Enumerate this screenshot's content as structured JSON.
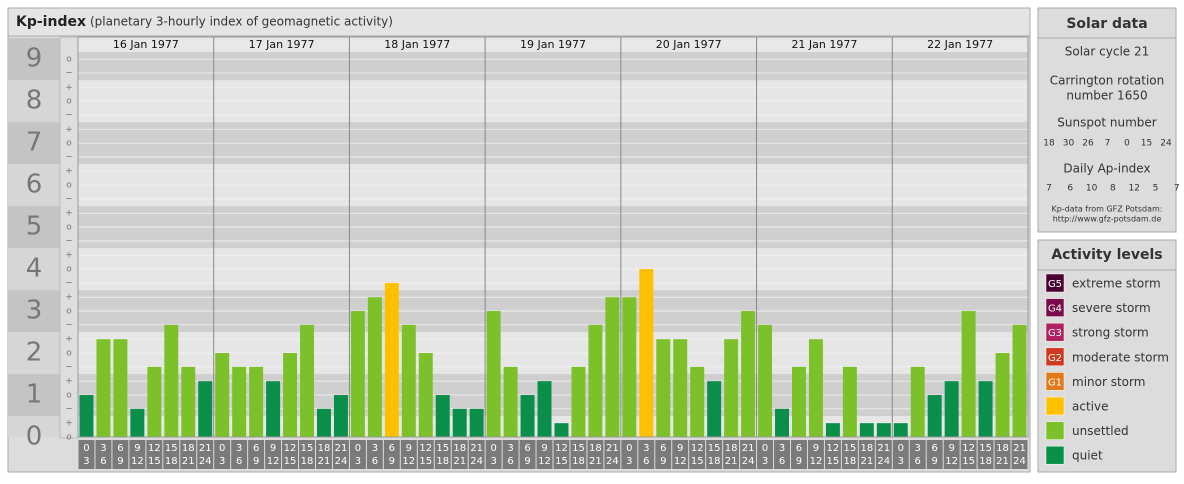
{
  "chart_data": {
    "type": "bar",
    "title": "Kp-index",
    "subtitle": "(planetary 3-hourly index of geomagnetic activity)",
    "ylim": [
      0,
      9.17
    ],
    "yticks": [
      0,
      1,
      2,
      3,
      4,
      5,
      6,
      7,
      8,
      9
    ],
    "minor_yticks": [
      {
        "value": 0,
        "label": "o"
      },
      {
        "value": 0.33,
        "label": "+"
      },
      {
        "value": 0.67,
        "label": "−"
      },
      {
        "value": 1,
        "label": "o"
      },
      {
        "value": 1.33,
        "label": "+"
      },
      {
        "value": 1.67,
        "label": "−"
      },
      {
        "value": 2,
        "label": "o"
      },
      {
        "value": 2.33,
        "label": "+"
      },
      {
        "value": 2.67,
        "label": "−"
      },
      {
        "value": 3,
        "label": "o"
      },
      {
        "value": 3.33,
        "label": "+"
      },
      {
        "value": 3.67,
        "label": "−"
      },
      {
        "value": 4,
        "label": "o"
      },
      {
        "value": 4.33,
        "label": "+"
      },
      {
        "value": 4.67,
        "label": "−"
      },
      {
        "value": 5,
        "label": "o"
      },
      {
        "value": 5.33,
        "label": "+"
      },
      {
        "value": 5.67,
        "label": "−"
      },
      {
        "value": 6,
        "label": "o"
      },
      {
        "value": 6.33,
        "label": "+"
      },
      {
        "value": 6.67,
        "label": "−"
      },
      {
        "value": 7,
        "label": "o"
      },
      {
        "value": 7.33,
        "label": "+"
      },
      {
        "value": 7.67,
        "label": "−"
      },
      {
        "value": 8,
        "label": "o"
      },
      {
        "value": 8.33,
        "label": "+"
      },
      {
        "value": 8.67,
        "label": "−"
      },
      {
        "value": 9,
        "label": "o"
      }
    ],
    "intervals": [
      [
        "0",
        "3"
      ],
      [
        "3",
        "6"
      ],
      [
        "6",
        "9"
      ],
      [
        "9",
        "12"
      ],
      [
        "12",
        "15"
      ],
      [
        "15",
        "18"
      ],
      [
        "18",
        "21"
      ],
      [
        "21",
        "24"
      ]
    ],
    "days": [
      {
        "date": "16 Jan 1977",
        "values": [
          1,
          2.33,
          2.33,
          0.67,
          1.67,
          2.67,
          1.67,
          1.33
        ],
        "colors": [
          "#0a8f4b",
          "#7dc12a",
          "#7dc12a",
          "#0a8f4b",
          "#7dc12a",
          "#7dc12a",
          "#7dc12a",
          "#0a8f4b"
        ]
      },
      {
        "date": "17 Jan 1977",
        "values": [
          2,
          1.67,
          1.67,
          1.33,
          2,
          2.67,
          0.67,
          1
        ],
        "colors": [
          "#7dc12a",
          "#7dc12a",
          "#7dc12a",
          "#0a8f4b",
          "#7dc12a",
          "#7dc12a",
          "#0a8f4b",
          "#0a8f4b"
        ]
      },
      {
        "date": "18 Jan 1977",
        "values": [
          3,
          3.33,
          3.67,
          2.67,
          2,
          1,
          0.67,
          0.67
        ],
        "colors": [
          "#7dc12a",
          "#7dc12a",
          "#ffc000",
          "#7dc12a",
          "#7dc12a",
          "#0a8f4b",
          "#0a8f4b",
          "#0a8f4b"
        ]
      },
      {
        "date": "19 Jan 1977",
        "values": [
          3,
          1.67,
          1,
          1.33,
          0.33,
          1.67,
          2.67,
          3.33
        ],
        "colors": [
          "#7dc12a",
          "#7dc12a",
          "#0a8f4b",
          "#0a8f4b",
          "#0a8f4b",
          "#7dc12a",
          "#7dc12a",
          "#7dc12a"
        ]
      },
      {
        "date": "20 Jan 1977",
        "values": [
          3.33,
          4,
          2.33,
          2.33,
          1.67,
          1.33,
          2.33,
          3
        ],
        "colors": [
          "#7dc12a",
          "#ffc000",
          "#7dc12a",
          "#7dc12a",
          "#7dc12a",
          "#0a8f4b",
          "#7dc12a",
          "#7dc12a"
        ]
      },
      {
        "date": "21 Jan 1977",
        "values": [
          2.67,
          0.67,
          1.67,
          2.33,
          0.33,
          1.67,
          0.33,
          0.33
        ],
        "colors": [
          "#7dc12a",
          "#0a8f4b",
          "#7dc12a",
          "#7dc12a",
          "#0a8f4b",
          "#7dc12a",
          "#0a8f4b",
          "#0a8f4b"
        ]
      },
      {
        "date": "22 Jan 1977",
        "values": [
          0.33,
          1.67,
          1,
          1.33,
          3,
          1.33,
          2,
          2.67
        ],
        "colors": [
          "#0a8f4b",
          "#7dc12a",
          "#0a8f4b",
          "#0a8f4b",
          "#7dc12a",
          "#0a8f4b",
          "#7dc12a",
          "#7dc12a"
        ]
      }
    ]
  },
  "solar": {
    "title": "Solar data",
    "cycle": "Solar cycle 21",
    "carrington": [
      "Carrington rotation",
      "number 1650"
    ],
    "sunspot_title": "Sunspot number",
    "sunspot": [
      18,
      30,
      26,
      7,
      0,
      15,
      24
    ],
    "ap_title": "Daily Ap-index",
    "ap": [
      7,
      6,
      10,
      8,
      12,
      5,
      7
    ],
    "source": [
      "Kp-data from GFZ Potsdam:",
      "http://www.gfz-potsdam.de"
    ]
  },
  "legend": {
    "title": "Activity levels",
    "items": [
      {
        "badge": "G5",
        "label": "extreme storm",
        "color": "#4a0030"
      },
      {
        "badge": "G4",
        "label": "severe storm",
        "color": "#7a0a4a"
      },
      {
        "badge": "G3",
        "label": "strong storm",
        "color": "#b0205e"
      },
      {
        "badge": "G2",
        "label": "moderate storm",
        "color": "#d0381c"
      },
      {
        "badge": "G1",
        "label": "minor storm",
        "color": "#e07a1a"
      },
      {
        "label": "active",
        "color": "#ffc000"
      },
      {
        "label": "unsettled",
        "color": "#7dc12a"
      },
      {
        "label": "quiet",
        "color": "#0a8f4b"
      }
    ]
  }
}
